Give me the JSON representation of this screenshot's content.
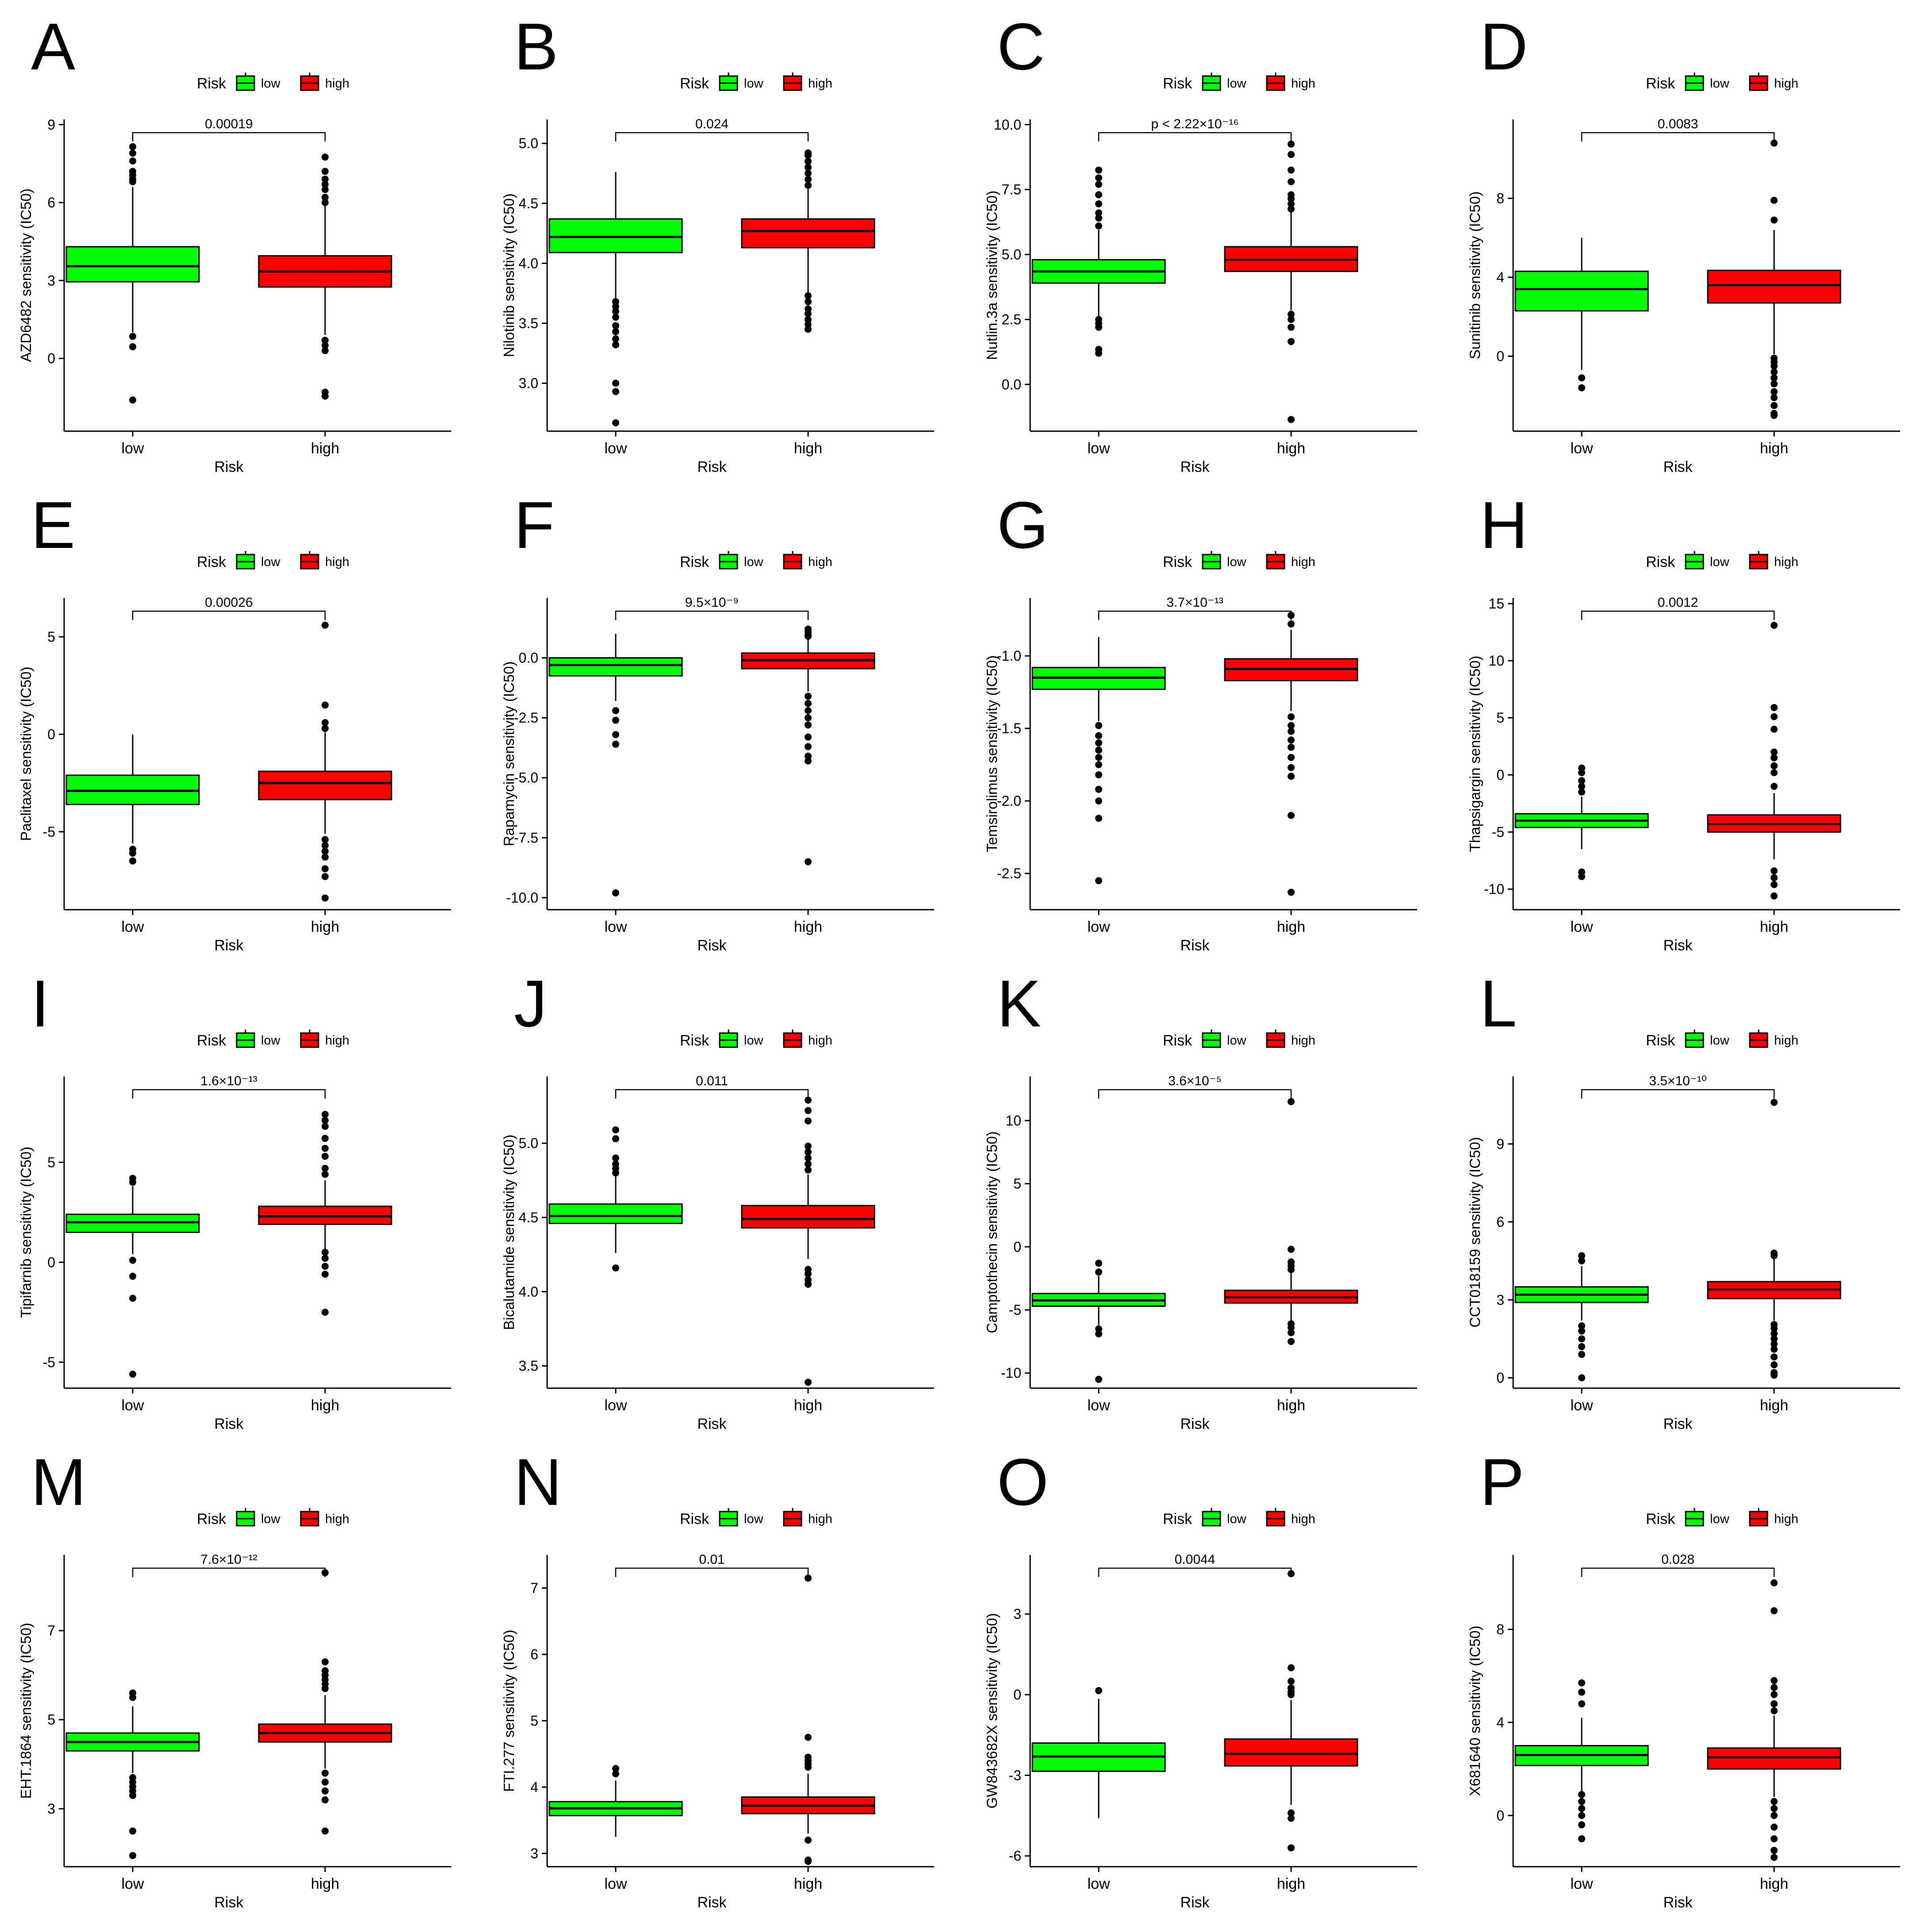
{
  "colors": {
    "low": "#00FF00",
    "high": "#FF0000",
    "axis": "#000000"
  },
  "chart_data": [
    {
      "panel": "A",
      "type": "box",
      "title": "",
      "legend_title": "Risk",
      "legend": [
        "low",
        "high"
      ],
      "ylabel": "AZD6482 sensitivity (IC50)",
      "xlabel": "Risk",
      "categories": [
        "low",
        "high"
      ],
      "ylim": [
        -2.8,
        9.2
      ],
      "yticks": [
        0,
        3,
        6,
        9
      ],
      "ytick_labels": [
        "0",
        "3",
        "6",
        "9"
      ],
      "pvalue": "0.00019",
      "boxes": [
        {
          "q1": 2.95,
          "median": 3.55,
          "q3": 4.3,
          "wlo": 1.0,
          "whi": 6.6,
          "outliers": [
            0.85,
            0.45,
            -1.6,
            6.8,
            6.9,
            7.05,
            7.2,
            7.6,
            7.9,
            8.15
          ]
        },
        {
          "q1": 2.75,
          "median": 3.35,
          "q3": 3.95,
          "wlo": 0.9,
          "whi": 5.9,
          "outliers": [
            0.7,
            0.5,
            0.3,
            -1.3,
            -1.45,
            6.0,
            6.2,
            6.5,
            6.7,
            6.9,
            7.2,
            7.75
          ]
        }
      ]
    },
    {
      "panel": "B",
      "type": "box",
      "title": "",
      "legend_title": "Risk",
      "legend": [
        "low",
        "high"
      ],
      "ylabel": "Nilotinib sensitivity (IC50)",
      "xlabel": "Risk",
      "categories": [
        "low",
        "high"
      ],
      "ylim": [
        2.6,
        5.2
      ],
      "yticks": [
        3.0,
        3.5,
        4.0,
        4.5,
        5.0
      ],
      "ytick_labels": [
        "3.0",
        "3.5",
        "4.0",
        "4.5",
        "5.0"
      ],
      "pvalue": "0.024",
      "boxes": [
        {
          "q1": 4.09,
          "median": 4.22,
          "q3": 4.37,
          "wlo": 3.7,
          "whi": 4.76,
          "outliers": [
            3.68,
            3.64,
            3.6,
            3.55,
            3.48,
            3.43,
            3.37,
            3.32,
            3.0,
            2.93,
            2.67
          ]
        },
        {
          "q1": 4.13,
          "median": 4.27,
          "q3": 4.37,
          "wlo": 3.75,
          "whi": 4.62,
          "outliers": [
            3.73,
            3.68,
            3.62,
            3.58,
            3.53,
            3.49,
            3.45,
            4.65,
            4.7,
            4.75,
            4.8,
            4.85,
            4.9,
            4.92
          ]
        }
      ]
    },
    {
      "panel": "C",
      "type": "box",
      "title": "",
      "legend_title": "Risk",
      "legend": [
        "low",
        "high"
      ],
      "ylabel": "Nutlin.3a sensitivity (IC50)",
      "xlabel": "Risk",
      "categories": [
        "low",
        "high"
      ],
      "ylim": [
        -1.8,
        10.2
      ],
      "yticks": [
        0.0,
        2.5,
        5.0,
        7.5,
        10.0
      ],
      "ytick_labels": [
        "0.0",
        "2.5",
        "5.0",
        "7.5",
        "10.0"
      ],
      "pvalue": "p < 2.22×10⁻¹⁶",
      "boxes": [
        {
          "q1": 3.9,
          "median": 4.35,
          "q3": 4.8,
          "wlo": 2.6,
          "whi": 5.95,
          "outliers": [
            2.5,
            2.35,
            2.2,
            1.35,
            1.2,
            6.1,
            6.4,
            6.6,
            6.95,
            7.3,
            7.7,
            7.95,
            8.25
          ]
        },
        {
          "q1": 4.35,
          "median": 4.8,
          "q3": 5.3,
          "wlo": 2.85,
          "whi": 6.65,
          "outliers": [
            2.7,
            2.5,
            2.2,
            1.65,
            -1.35,
            6.75,
            6.95,
            7.15,
            7.3,
            7.8,
            8.25,
            8.85,
            9.25
          ]
        }
      ]
    },
    {
      "panel": "D",
      "type": "box",
      "title": "",
      "legend_title": "Risk",
      "legend": [
        "low",
        "high"
      ],
      "ylabel": "Sunitinib sensitivity (IC50)",
      "xlabel": "Risk",
      "categories": [
        "low",
        "high"
      ],
      "ylim": [
        -3.8,
        12.0
      ],
      "yticks": [
        0,
        4,
        8
      ],
      "ytick_labels": [
        "0",
        "4",
        "8"
      ],
      "pvalue": "0.0083",
      "boxes": [
        {
          "q1": 2.3,
          "median": 3.4,
          "q3": 4.3,
          "wlo": -0.7,
          "whi": 6.0,
          "outliers": [
            -1.1,
            -1.6
          ]
        },
        {
          "q1": 2.7,
          "median": 3.6,
          "q3": 4.35,
          "wlo": 0.1,
          "whi": 6.4,
          "outliers": [
            -0.1,
            -0.3,
            -0.5,
            -0.8,
            -1.1,
            -1.4,
            -1.8,
            -2.1,
            -2.5,
            -2.9,
            -3.0,
            6.9,
            7.9,
            10.8
          ]
        }
      ]
    },
    {
      "panel": "E",
      "type": "box",
      "title": "",
      "legend_title": "Risk",
      "legend": [
        "low",
        "high"
      ],
      "ylabel": "Paclitaxel sensitivity (IC50)",
      "xlabel": "Risk",
      "categories": [
        "low",
        "high"
      ],
      "ylim": [
        -9.0,
        7.0
      ],
      "yticks": [
        -5,
        0,
        5
      ],
      "ytick_labels": [
        "-5",
        "0",
        "5"
      ],
      "pvalue": "0.00026",
      "boxes": [
        {
          "q1": -3.6,
          "median": -2.9,
          "q3": -2.1,
          "wlo": -5.6,
          "whi": 0.0,
          "outliers": [
            -5.9,
            -6.1,
            -6.5
          ]
        },
        {
          "q1": -3.35,
          "median": -2.5,
          "q3": -1.9,
          "wlo": -5.1,
          "whi": 0.1,
          "outliers": [
            0.3,
            0.6,
            1.5,
            5.6,
            -5.4,
            -5.7,
            -6.0,
            -6.3,
            -6.9,
            -7.3,
            -8.4
          ]
        }
      ]
    },
    {
      "panel": "F",
      "type": "box",
      "title": "",
      "legend_title": "Risk",
      "legend": [
        "low",
        "high"
      ],
      "ylabel": "Rapamycin sensitivity (IC50)",
      "xlabel": "Risk",
      "categories": [
        "low",
        "high"
      ],
      "ylim": [
        -10.5,
        2.5
      ],
      "yticks": [
        -10.0,
        -7.5,
        -5.0,
        -2.5,
        0.0
      ],
      "ytick_labels": [
        "-10.0",
        "-7.5",
        "-5.0",
        "-2.5",
        "0.0"
      ],
      "pvalue": "9.5×10⁻⁹",
      "boxes": [
        {
          "q1": -0.75,
          "median": -0.3,
          "q3": 0.0,
          "wlo": -1.8,
          "whi": 1.0,
          "outliers": [
            -2.2,
            -2.6,
            -3.2,
            -3.6,
            -9.8
          ]
        },
        {
          "q1": -0.45,
          "median": -0.1,
          "q3": 0.2,
          "wlo": -1.4,
          "whi": 0.8,
          "outliers": [
            0.9,
            1.0,
            1.1,
            1.2,
            -1.6,
            -1.9,
            -2.2,
            -2.5,
            -2.8,
            -3.3,
            -3.7,
            -4.1,
            -4.3,
            -8.5
          ]
        }
      ]
    },
    {
      "panel": "G",
      "type": "box",
      "title": "",
      "legend_title": "Risk",
      "legend": [
        "low",
        "high"
      ],
      "ylabel": "Temsirolimus sensitivity (IC50)",
      "xlabel": "Risk",
      "categories": [
        "low",
        "high"
      ],
      "ylim": [
        -2.75,
        -0.6
      ],
      "yticks": [
        -2.5,
        -2.0,
        -1.5,
        -1.0
      ],
      "ytick_labels": [
        "-2.5",
        "-2.0",
        "-1.5",
        "-1.0"
      ],
      "pvalue": "3.7×10⁻¹³",
      "boxes": [
        {
          "q1": -1.23,
          "median": -1.15,
          "q3": -1.08,
          "wlo": -1.45,
          "whi": -0.87,
          "outliers": [
            -1.48,
            -1.55,
            -1.6,
            -1.65,
            -1.7,
            -1.75,
            -1.82,
            -1.92,
            -2.0,
            -2.12,
            -2.55
          ]
        },
        {
          "q1": -1.17,
          "median": -1.09,
          "q3": -1.02,
          "wlo": -1.38,
          "whi": -0.82,
          "outliers": [
            -0.78,
            -0.72,
            -1.42,
            -1.48,
            -1.52,
            -1.58,
            -1.63,
            -1.7,
            -1.77,
            -1.83,
            -2.1,
            -2.63
          ]
        }
      ]
    },
    {
      "panel": "H",
      "type": "box",
      "title": "",
      "legend_title": "Risk",
      "legend": [
        "low",
        "high"
      ],
      "ylabel": "Thapsigargin sensitivity (IC50)",
      "xlabel": "Risk",
      "categories": [
        "low",
        "high"
      ],
      "ylim": [
        -11.8,
        15.5
      ],
      "yticks": [
        -10,
        -5,
        0,
        5,
        10,
        15
      ],
      "ytick_labels": [
        "-10",
        "-5",
        "0",
        "5",
        "10",
        "15"
      ],
      "pvalue": "0.0012",
      "boxes": [
        {
          "q1": -4.6,
          "median": -4.0,
          "q3": -3.4,
          "wlo": -6.5,
          "whi": -1.9,
          "outliers": [
            -1.5,
            -1.0,
            -0.5,
            0.2,
            0.6,
            -8.5,
            -8.9
          ]
        },
        {
          "q1": -5.0,
          "median": -4.3,
          "q3": -3.5,
          "wlo": -7.4,
          "whi": -1.6,
          "outliers": [
            -1.0,
            0.2,
            0.8,
            1.5,
            2.0,
            4.0,
            5.1,
            5.9,
            13.1,
            -8.4,
            -9.0,
            -9.6,
            -10.6
          ]
        }
      ]
    },
    {
      "panel": "I",
      "type": "box",
      "title": "",
      "legend_title": "Risk",
      "legend": [
        "low",
        "high"
      ],
      "ylabel": "Tipifarnib sensitivity (IC50)",
      "xlabel": "Risk",
      "categories": [
        "low",
        "high"
      ],
      "ylim": [
        -6.3,
        9.3
      ],
      "yticks": [
        -5,
        0,
        5
      ],
      "ytick_labels": [
        "-5",
        "0",
        "5"
      ],
      "pvalue": "1.6×10⁻¹³",
      "boxes": [
        {
          "q1": 1.5,
          "median": 2.0,
          "q3": 2.4,
          "wlo": 0.4,
          "whi": 3.8,
          "outliers": [
            0.1,
            -0.7,
            -1.8,
            -5.6,
            4.0,
            4.2
          ]
        },
        {
          "q1": 1.9,
          "median": 2.3,
          "q3": 2.8,
          "wlo": 0.6,
          "whi": 4.1,
          "outliers": [
            0.5,
            0.2,
            -0.2,
            -0.6,
            -2.5,
            4.4,
            4.7,
            5.3,
            5.7,
            6.2,
            6.8,
            7.1,
            7.4
          ]
        }
      ]
    },
    {
      "panel": "J",
      "type": "box",
      "title": "",
      "legend_title": "Risk",
      "legend": [
        "low",
        "high"
      ],
      "ylabel": "Bicalutamide sensitivity (IC50)",
      "xlabel": "Risk",
      "categories": [
        "low",
        "high"
      ],
      "ylim": [
        3.35,
        5.45
      ],
      "yticks": [
        3.5,
        4.0,
        4.5,
        5.0
      ],
      "ytick_labels": [
        "3.5",
        "4.0",
        "4.5",
        "5.0"
      ],
      "pvalue": "0.011",
      "boxes": [
        {
          "q1": 4.46,
          "median": 4.51,
          "q3": 4.59,
          "wlo": 4.26,
          "whi": 4.78,
          "outliers": [
            4.16,
            4.8,
            4.83,
            4.86,
            4.9,
            5.03,
            5.09
          ]
        },
        {
          "q1": 4.43,
          "median": 4.49,
          "q3": 4.58,
          "wlo": 4.22,
          "whi": 4.79,
          "outliers": [
            4.05,
            4.08,
            4.12,
            4.15,
            3.39,
            4.82,
            4.86,
            4.9,
            4.94,
            4.98,
            5.15,
            5.22,
            5.29
          ]
        }
      ]
    },
    {
      "panel": "K",
      "type": "box",
      "title": "",
      "legend_title": "Risk",
      "legend": [
        "low",
        "high"
      ],
      "ylabel": "Camptothecin sensitivity (IC50)",
      "xlabel": "Risk",
      "categories": [
        "low",
        "high"
      ],
      "ylim": [
        -11.2,
        13.5
      ],
      "yticks": [
        -10,
        -5,
        0,
        5,
        10
      ],
      "ytick_labels": [
        "-10",
        "-5",
        "0",
        "5",
        "10"
      ],
      "pvalue": "3.6×10⁻⁵",
      "boxes": [
        {
          "q1": -4.7,
          "median": -4.25,
          "q3": -3.7,
          "wlo": -6.2,
          "whi": -2.3,
          "outliers": [
            -2.0,
            -1.3,
            -6.5,
            -6.9,
            -10.5
          ]
        },
        {
          "q1": -4.45,
          "median": -4.0,
          "q3": -3.45,
          "wlo": -5.9,
          "whi": -2.0,
          "outliers": [
            -1.8,
            -1.5,
            -1.2,
            -0.2,
            -6.1,
            -6.4,
            -6.8,
            -7.5,
            11.5
          ]
        }
      ]
    },
    {
      "panel": "L",
      "type": "box",
      "title": "",
      "legend_title": "Risk",
      "legend": [
        "low",
        "high"
      ],
      "ylabel": "CCT018159 sensitivity (IC50)",
      "xlabel": "Risk",
      "categories": [
        "low",
        "high"
      ],
      "ylim": [
        -0.4,
        11.6
      ],
      "yticks": [
        0,
        3,
        6,
        9
      ],
      "ytick_labels": [
        "0",
        "3",
        "6",
        "9"
      ],
      "pvalue": "3.5×10⁻¹⁰",
      "boxes": [
        {
          "q1": 2.9,
          "median": 3.2,
          "q3": 3.5,
          "wlo": 2.2,
          "whi": 4.3,
          "outliers": [
            2.0,
            1.8,
            1.5,
            1.2,
            0.9,
            0.0,
            4.5,
            4.7
          ]
        },
        {
          "q1": 3.05,
          "median": 3.4,
          "q3": 3.7,
          "wlo": 2.2,
          "whi": 4.6,
          "outliers": [
            2.05,
            1.9,
            1.7,
            1.5,
            1.3,
            1.1,
            0.8,
            0.5,
            0.2,
            0.1,
            4.7,
            4.8,
            10.6
          ]
        }
      ]
    },
    {
      "panel": "M",
      "type": "box",
      "title": "",
      "legend_title": "Risk",
      "legend": [
        "low",
        "high"
      ],
      "ylabel": "EHT.1864 sensitivity (IC50)",
      "xlabel": "Risk",
      "categories": [
        "low",
        "high"
      ],
      "ylim": [
        1.7,
        8.7
      ],
      "yticks": [
        3,
        5,
        7
      ],
      "ytick_labels": [
        "3",
        "5",
        "7"
      ],
      "pvalue": "7.6×10⁻¹²",
      "boxes": [
        {
          "q1": 4.3,
          "median": 4.5,
          "q3": 4.7,
          "wlo": 3.8,
          "whi": 5.3,
          "outliers": [
            3.7,
            3.6,
            3.5,
            3.4,
            3.3,
            2.5,
            1.95,
            5.5,
            5.6
          ]
        },
        {
          "q1": 4.5,
          "median": 4.7,
          "q3": 4.9,
          "wlo": 3.9,
          "whi": 5.55,
          "outliers": [
            3.8,
            3.6,
            3.4,
            3.2,
            2.5,
            5.7,
            5.8,
            5.9,
            6.0,
            6.1,
            6.3,
            8.3
          ]
        }
      ]
    },
    {
      "panel": "N",
      "type": "box",
      "title": "",
      "legend_title": "Risk",
      "legend": [
        "low",
        "high"
      ],
      "ylabel": "FTI.277 sensitivity (IC50)",
      "xlabel": "Risk",
      "categories": [
        "low",
        "high"
      ],
      "ylim": [
        2.8,
        7.5
      ],
      "yticks": [
        3,
        4,
        5,
        6,
        7
      ],
      "ytick_labels": [
        "3",
        "4",
        "5",
        "6",
        "7"
      ],
      "pvalue": "0.01",
      "boxes": [
        {
          "q1": 3.57,
          "median": 3.68,
          "q3": 3.78,
          "wlo": 3.25,
          "whi": 4.1,
          "outliers": [
            4.2,
            4.28
          ]
        },
        {
          "q1": 3.6,
          "median": 3.72,
          "q3": 3.85,
          "wlo": 3.3,
          "whi": 4.2,
          "outliers": [
            3.2,
            2.9,
            2.88,
            4.3,
            4.35,
            4.4,
            4.45,
            4.75,
            7.15
          ]
        }
      ]
    },
    {
      "panel": "O",
      "type": "box",
      "title": "",
      "legend_title": "Risk",
      "legend": [
        "low",
        "high"
      ],
      "ylabel": "GW843682X sensitivity (IC50)",
      "xlabel": "Risk",
      "categories": [
        "low",
        "high"
      ],
      "ylim": [
        -6.4,
        5.2
      ],
      "yticks": [
        -6,
        -3,
        0,
        3
      ],
      "ytick_labels": [
        "-6",
        "-3",
        "0",
        "3"
      ],
      "pvalue": "0.0044",
      "boxes": [
        {
          "q1": -2.85,
          "median": -2.3,
          "q3": -1.8,
          "wlo": -4.6,
          "whi": -0.15,
          "outliers": [
            0.15
          ]
        },
        {
          "q1": -2.65,
          "median": -2.2,
          "q3": -1.65,
          "wlo": -4.1,
          "whi": -0.2,
          "outliers": [
            0.0,
            0.1,
            0.25,
            0.5,
            1.0,
            -4.4,
            -4.6,
            -5.7,
            4.5
          ]
        }
      ]
    },
    {
      "panel": "P",
      "type": "box",
      "title": "",
      "legend_title": "Risk",
      "legend": [
        "low",
        "high"
      ],
      "ylabel": "X681640 sensitivity (IC50)",
      "xlabel": "Risk",
      "categories": [
        "low",
        "high"
      ],
      "ylim": [
        -2.2,
        11.2
      ],
      "yticks": [
        0,
        4,
        8
      ],
      "ytick_labels": [
        "0",
        "4",
        "8"
      ],
      "pvalue": "0.028",
      "boxes": [
        {
          "q1": 2.15,
          "median": 2.6,
          "q3": 3.0,
          "wlo": 1.0,
          "whi": 4.2,
          "outliers": [
            0.9,
            0.6,
            0.3,
            0.0,
            -0.4,
            -1.0,
            4.8,
            5.3,
            5.7
          ]
        },
        {
          "q1": 2.0,
          "median": 2.5,
          "q3": 2.9,
          "wlo": 0.8,
          "whi": 4.3,
          "outliers": [
            0.6,
            0.3,
            0.0,
            -0.5,
            -1.0,
            -1.5,
            -1.8,
            4.5,
            4.8,
            5.2,
            5.5,
            5.8,
            8.8,
            10.0
          ]
        }
      ]
    }
  ]
}
